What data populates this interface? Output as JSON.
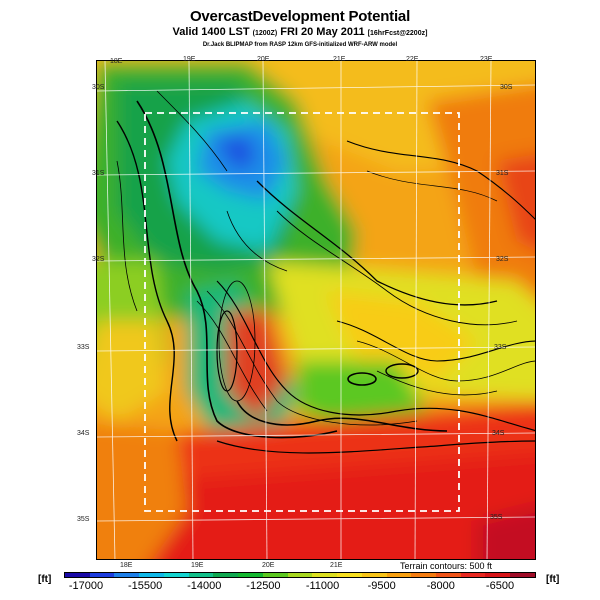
{
  "header": {
    "title": "OvercastDevelopment Potential",
    "subtitle_main": "Valid 1400 LST",
    "subtitle_utc": "(1200Z)",
    "subtitle_date": "FRI 20 May 2011",
    "subtitle_fcst": "[16hrFcst@2200z]",
    "model_line": "Dr.Jack BLIPMAP from RASP 12km GFS-initialized WRF-ARW model"
  },
  "map": {
    "lon_top": [
      "18E",
      "19E",
      "20E",
      "21E",
      "22E",
      "23E"
    ],
    "lon_bottom": [
      "18E",
      "19E",
      "20E",
      "21E"
    ],
    "lat_left": [
      "30S",
      "31S",
      "32S",
      "33S",
      "34S",
      "35S"
    ],
    "lat_right": [
      "30S",
      "31S",
      "32S",
      "33S",
      "34S",
      "35S"
    ],
    "terrain_contours": "Terrain contours: 500 ft"
  },
  "colorbar": {
    "unit_left": "[ft]",
    "unit_right": "[ft]",
    "ticks": [
      "-17000",
      "-15500",
      "-14000",
      "-12500",
      "-11000",
      "-9500",
      "-8000",
      "-6500"
    ],
    "colors": [
      "#1a0aa8",
      "#1d3de0",
      "#1e7fe8",
      "#10b8e8",
      "#14d4d0",
      "#12c08a",
      "#10a850",
      "#14b830",
      "#5cc820",
      "#a8d820",
      "#dce020",
      "#f8e020",
      "#f8c418",
      "#f8a010",
      "#f47c10",
      "#f05418",
      "#e82820",
      "#d81418",
      "#a00c28"
    ]
  }
}
